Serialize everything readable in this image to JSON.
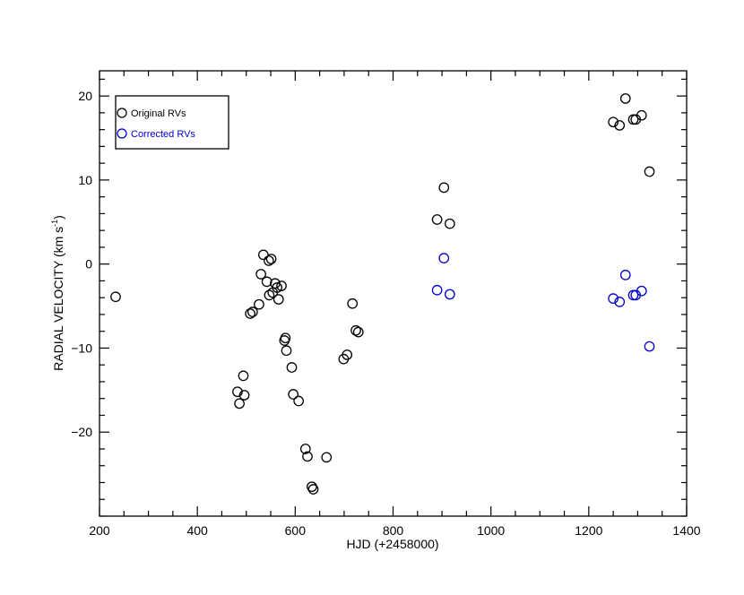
{
  "chart_data": {
    "type": "scatter",
    "title": "",
    "xlabel": "HJD (+2458000)",
    "ylabel_main": "RADIAL VELOCITY (km s",
    "ylabel_sup": "-1",
    "ylabel_close": ")",
    "xlim": [
      200,
      1400
    ],
    "ylim": [
      -30,
      23
    ],
    "x_major_ticks": [
      200,
      400,
      600,
      800,
      1000,
      1200,
      1400
    ],
    "x_tick_labels": [
      "200",
      "400",
      "600",
      "800",
      "1000",
      "1200",
      "1400"
    ],
    "x_minor_step": 50,
    "y_major_ticks": [
      -20,
      -10,
      0,
      10,
      20
    ],
    "y_tick_labels": [
      "−20",
      "−10",
      "0",
      "10",
      "20"
    ],
    "y_minor_step": 2,
    "grid": false,
    "legend_position": "top-left",
    "series": [
      {
        "name": "Original RVs",
        "color": "#000000",
        "marker": "open-circle",
        "points": [
          [
            233,
            -3.9
          ],
          [
            482,
            -15.2
          ],
          [
            486,
            -16.6
          ],
          [
            494,
            -13.3
          ],
          [
            496,
            -15.6
          ],
          [
            508,
            -5.9
          ],
          [
            513,
            -5.7
          ],
          [
            526,
            -4.8
          ],
          [
            530,
            -1.2
          ],
          [
            535,
            1.1
          ],
          [
            542,
            -2.1
          ],
          [
            546,
            0.4
          ],
          [
            547,
            -3.7
          ],
          [
            551,
            0.6
          ],
          [
            554,
            -3.4
          ],
          [
            559,
            -2.3
          ],
          [
            563,
            -2.8
          ],
          [
            566,
            -4.2
          ],
          [
            572,
            -2.6
          ],
          [
            578,
            -9.1
          ],
          [
            580,
            -8.8
          ],
          [
            582,
            -10.3
          ],
          [
            593,
            -12.3
          ],
          [
            596,
            -15.5
          ],
          [
            607,
            -16.3
          ],
          [
            621,
            -22.0
          ],
          [
            625,
            -22.9
          ],
          [
            634,
            -26.5
          ],
          [
            637,
            -26.8
          ],
          [
            664,
            -23.0
          ],
          [
            699,
            -11.3
          ],
          [
            706,
            -10.8
          ],
          [
            717,
            -4.7
          ],
          [
            724,
            -7.9
          ],
          [
            729,
            -8.1
          ],
          [
            890,
            5.3
          ],
          [
            904,
            9.1
          ],
          [
            916,
            4.8
          ],
          [
            1250,
            16.9
          ],
          [
            1263,
            16.5
          ],
          [
            1275,
            19.7
          ],
          [
            1291,
            17.2
          ],
          [
            1296,
            17.2
          ],
          [
            1308,
            17.7
          ],
          [
            1324,
            11.0
          ]
        ]
      },
      {
        "name": "Corrected RVs",
        "color": "#0000cc",
        "marker": "open-circle",
        "points": [
          [
            890,
            -3.1
          ],
          [
            904,
            0.7
          ],
          [
            916,
            -3.6
          ],
          [
            1250,
            -4.1
          ],
          [
            1263,
            -4.5
          ],
          [
            1275,
            -1.3
          ],
          [
            1291,
            -3.7
          ],
          [
            1296,
            -3.7
          ],
          [
            1308,
            -3.2
          ],
          [
            1324,
            -9.8
          ]
        ]
      }
    ]
  }
}
